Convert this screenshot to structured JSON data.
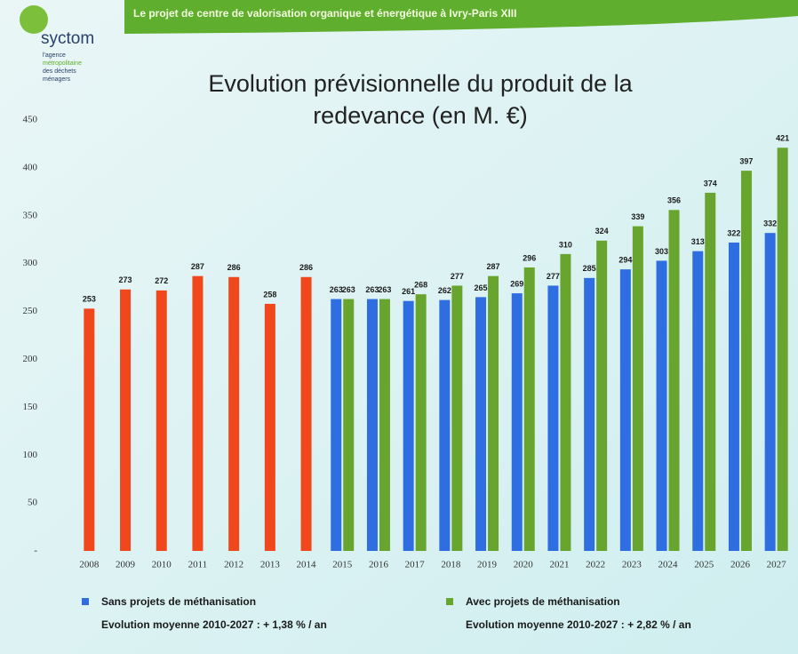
{
  "header": {
    "banner": "Le projet de centre de valorisation organique et énergétique à Ivry-Paris XIII",
    "logo": "syctom",
    "logo_lines": [
      "l'agence",
      "métropolitaine",
      "des déchets",
      "ménagers"
    ]
  },
  "chart_data": {
    "type": "bar",
    "title": [
      "Evolution prévisionnelle du produit de la",
      "redevance (en M. €)"
    ],
    "categories": [
      "2008",
      "2009",
      "2010",
      "2011",
      "2012",
      "2013",
      "2014",
      "2015",
      "2016",
      "2017",
      "2018",
      "2019",
      "2020",
      "2021",
      "2022",
      "2023",
      "2024",
      "2025",
      "2026",
      "2027"
    ],
    "series": [
      {
        "color": "#f0481c",
        "values": [
          253,
          273,
          272,
          287,
          286,
          258,
          286,
          null,
          null,
          null,
          null,
          null,
          null,
          null,
          null,
          null,
          null,
          null,
          null,
          null
        ]
      },
      {
        "name": "Sans projets de méthanisation",
        "note": "Evolution moyenne 2010-2027 : + 1,38 % / an",
        "color": "#2e6ee0",
        "values": [
          null,
          null,
          null,
          null,
          null,
          null,
          null,
          263,
          263,
          261,
          262,
          265,
          269,
          277,
          285,
          294,
          303,
          313,
          322,
          332
        ]
      },
      {
        "name": "Avec projets de méthanisation",
        "note": "Evolution moyenne 2010-2027 : + 2,82 % / an",
        "color": "#67a52e",
        "values": [
          null,
          null,
          null,
          null,
          null,
          null,
          null,
          263,
          263,
          268,
          277,
          287,
          296,
          310,
          324,
          339,
          356,
          374,
          397,
          421
        ]
      }
    ],
    "ylim": [
      0,
      450
    ],
    "yticks": [
      {
        "value": 0,
        "label": "-"
      },
      50,
      100,
      150,
      200,
      250,
      300,
      350,
      400,
      450
    ]
  }
}
